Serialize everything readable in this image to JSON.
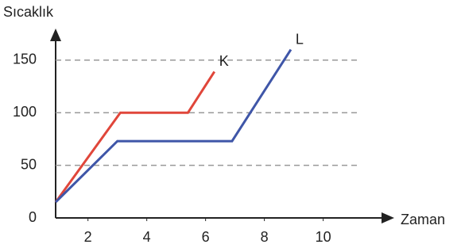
{
  "chart_data": {
    "type": "line",
    "ylabel": "Sıcaklık",
    "xlabel": "Zaman",
    "x": [
      0.9,
      3.1,
      5.4,
      6.3
    ],
    "series": [
      {
        "name": "K",
        "color": "#e0463a",
        "x": [
          0.9,
          3.1,
          5.4,
          6.3
        ],
        "values": [
          15,
          100,
          100,
          139
        ]
      },
      {
        "name": "L",
        "color": "#3f56a8",
        "x": [
          0.9,
          3.0,
          6.9,
          8.9
        ],
        "values": [
          15,
          73,
          73,
          160
        ]
      }
    ],
    "xlim": [
      0.9,
      12.2
    ],
    "ylim": [
      0,
      177
    ],
    "xticks": [
      2,
      4,
      6,
      8,
      10
    ],
    "yticks": [
      0,
      50,
      100,
      150
    ],
    "grid": "dashed"
  }
}
